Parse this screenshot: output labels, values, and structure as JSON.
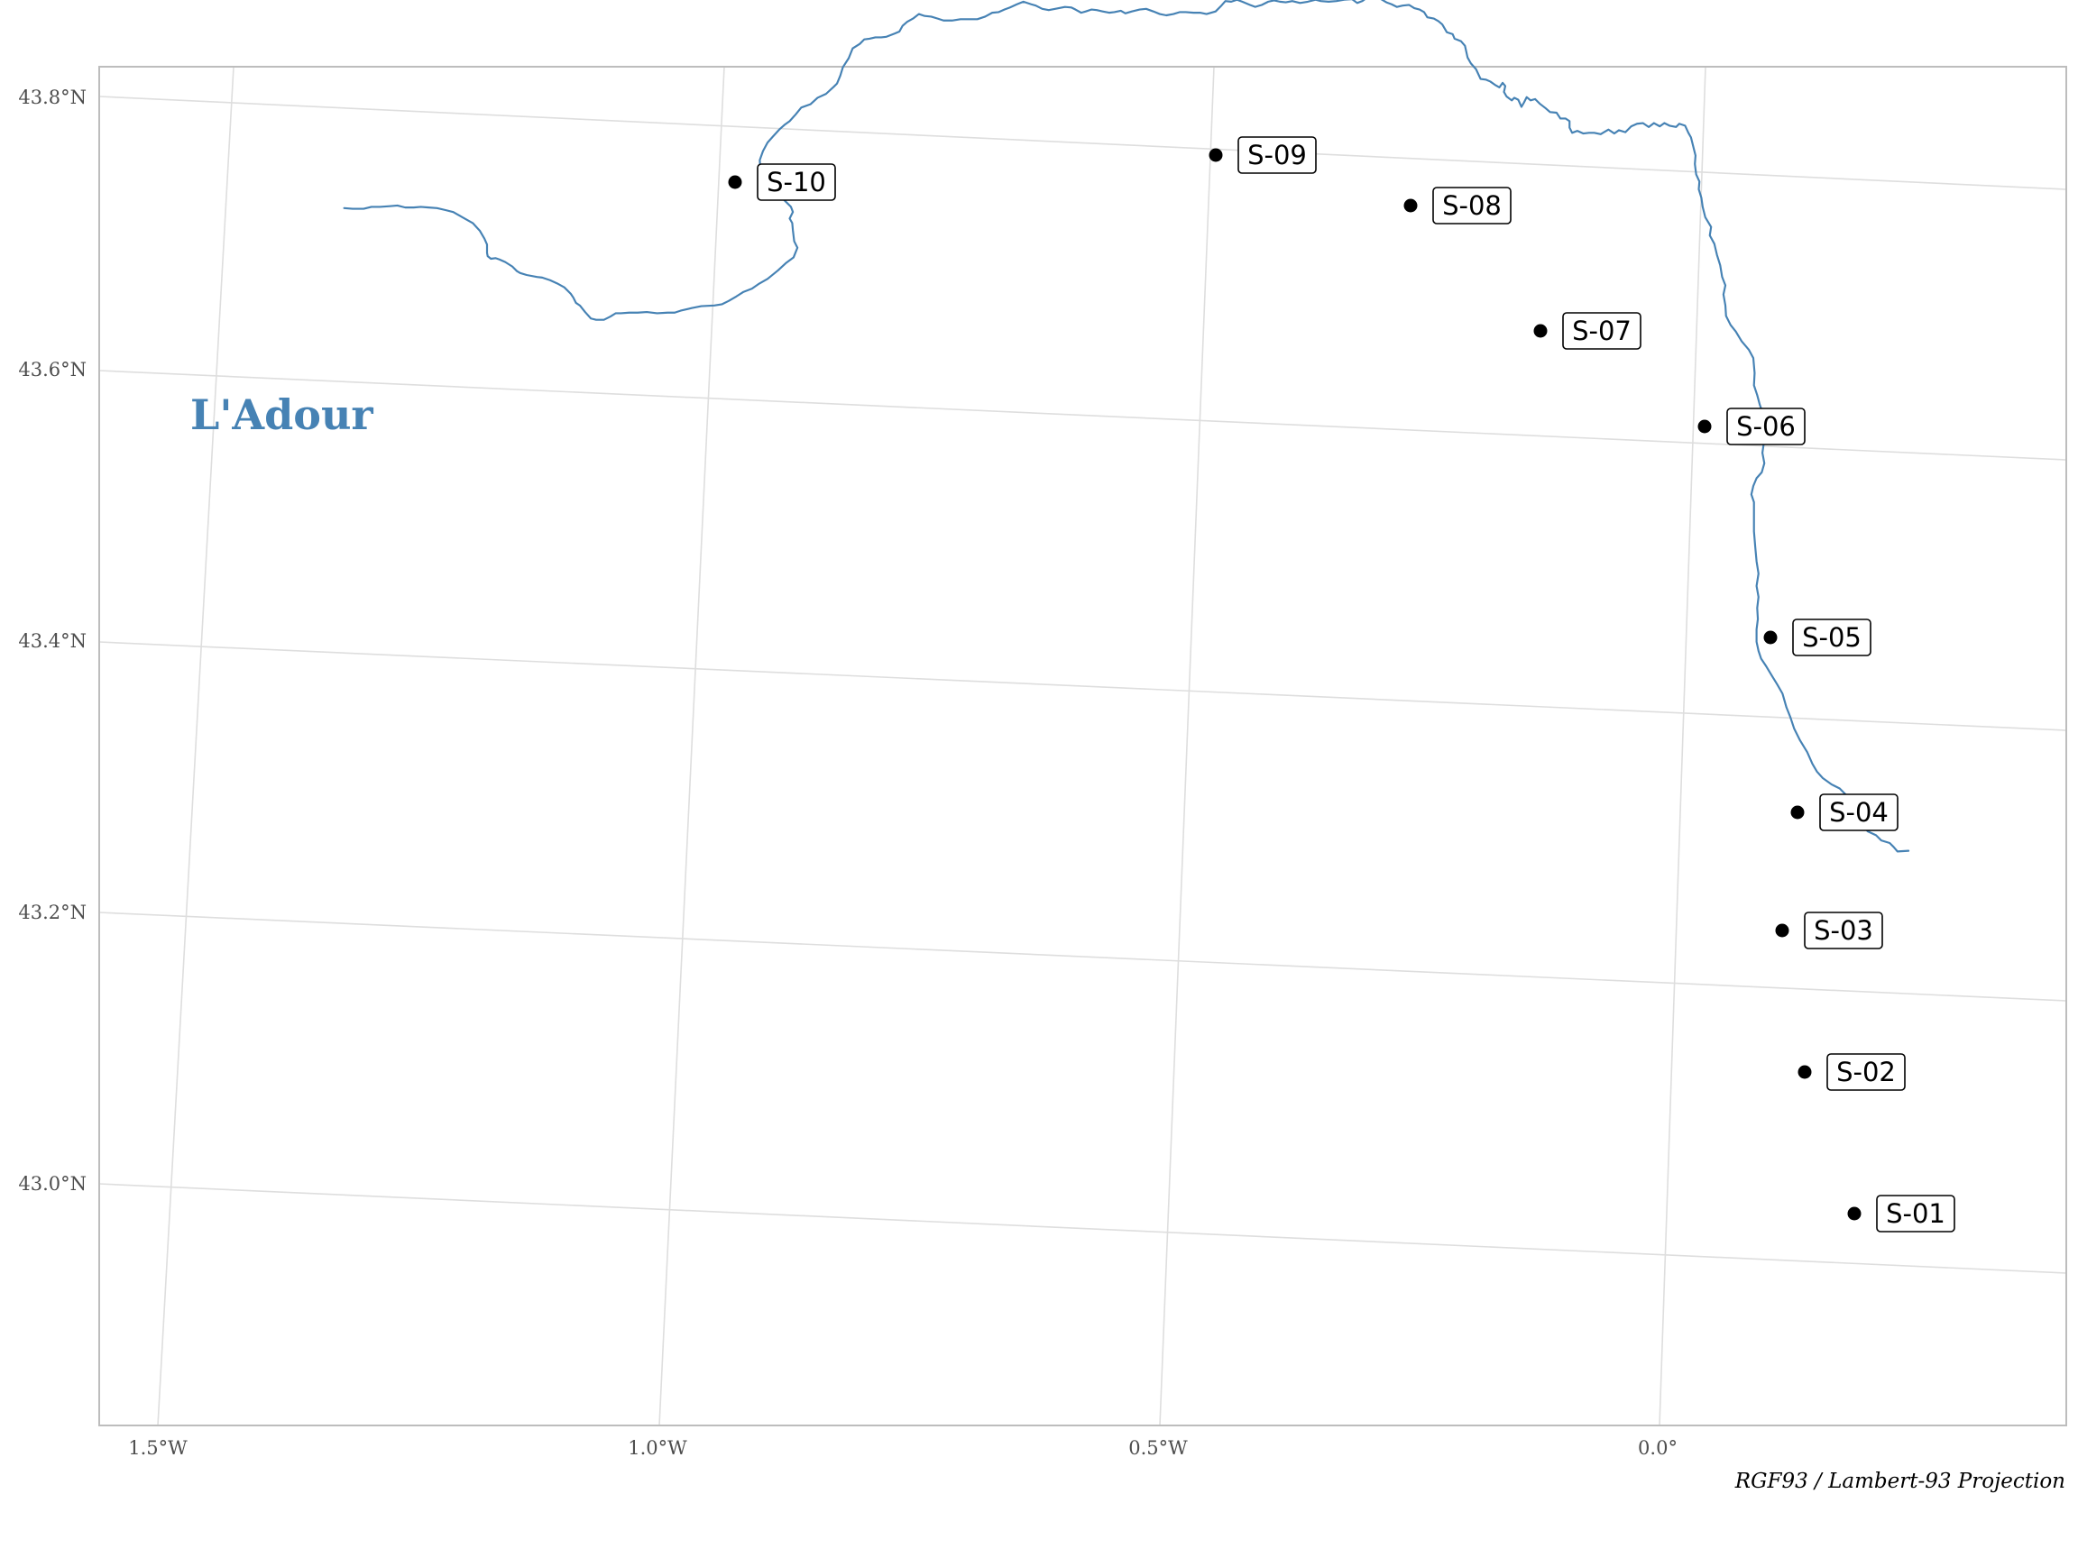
{
  "map": {
    "projection_caption": "RGF93 / Lambert-93 Projection",
    "river": {
      "name": "L'Adour",
      "color": "#4682b4"
    },
    "graticule": {
      "longitude_labels": [
        "1.5°W",
        "1.0°W",
        "0.5°W",
        "0.0°"
      ],
      "latitude_labels": [
        "43.8°N",
        "43.6°N",
        "43.4°N",
        "43.2°N",
        "43.0°N"
      ]
    },
    "stations": [
      {
        "id": "S-01"
      },
      {
        "id": "S-02"
      },
      {
        "id": "S-03"
      },
      {
        "id": "S-04"
      },
      {
        "id": "S-05"
      },
      {
        "id": "S-06"
      },
      {
        "id": "S-07"
      },
      {
        "id": "S-08"
      },
      {
        "id": "S-09"
      },
      {
        "id": "S-10"
      }
    ],
    "colors": {
      "river": "#4682b4",
      "stations": "#000000",
      "grid": "#dedede"
    }
  }
}
